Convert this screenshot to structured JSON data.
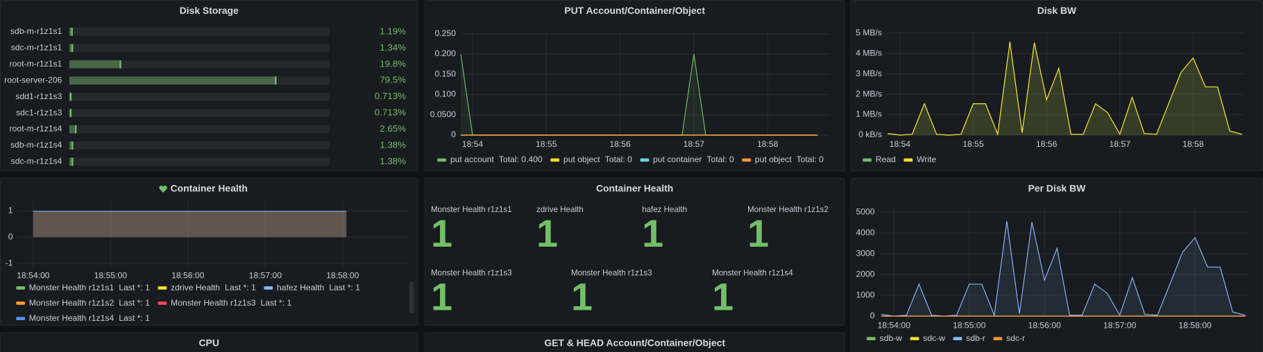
{
  "chart_data": [
    {
      "type": "bargauge",
      "title": "Disk Storage",
      "categories": [
        "sdb-m-r1z1s1",
        "sdc-m-r1z1s1",
        "root-m-r1z1s1",
        "root-server-206",
        "sdd1-r1z1s3",
        "sdc1-r1z1s3",
        "root-m-r1z1s4",
        "sdb-m-r1z1s4",
        "sdc-m-r1z1s4"
      ],
      "values": [
        1.19,
        1.34,
        19.8,
        79.5,
        0.713,
        0.713,
        2.65,
        1.38,
        1.38
      ],
      "value_labels": [
        "1.19%",
        "1.34%",
        "19.8%",
        "79.5%",
        "0.713%",
        "0.713%",
        "2.65%",
        "1.38%",
        "1.38%"
      ],
      "xlim": [
        0,
        100
      ],
      "color": "#73bf69"
    },
    {
      "type": "line",
      "title": "PUT Account/Container/Object",
      "x": [
        53.84,
        54,
        56.84,
        57,
        57.16,
        58.68
      ],
      "series": [
        {
          "name": "put account",
          "color": "#73bf69",
          "values": [
            0.2,
            0,
            0,
            0.2,
            0,
            0
          ],
          "legend_value": {
            "value": 0.4,
            "label": "Total: 0.400"
          }
        },
        {
          "name": "put object",
          "color": "#fade2a",
          "values": [
            0,
            0,
            0,
            0,
            0,
            0
          ],
          "legend_value": {
            "value": 0,
            "label": "Total: 0"
          }
        },
        {
          "name": "put container",
          "color": "#6ed0e0",
          "values": [
            0,
            0,
            0,
            0,
            0,
            0
          ],
          "legend_value": {
            "value": 0,
            "label": "Total: 0"
          }
        },
        {
          "name": "put object",
          "color": "#ff9830",
          "values": [
            0,
            0,
            0,
            0,
            0,
            0
          ],
          "legend_value": {
            "value": 0,
            "label": "Total: 0"
          }
        }
      ],
      "xlim": [
        53.84,
        58.84
      ],
      "ylim": [
        0,
        0.25
      ],
      "xticks": [
        {
          "value": 54,
          "label": "18:54"
        },
        {
          "value": 55,
          "label": "18:55"
        },
        {
          "value": 56,
          "label": "18:56"
        },
        {
          "value": 57,
          "label": "18:57"
        },
        {
          "value": 58,
          "label": "18:58"
        }
      ],
      "yticks": [
        0,
        {
          "value": 0.05,
          "label": "0.0500"
        },
        {
          "value": 0.1,
          "label": "0.100"
        },
        {
          "value": 0.15,
          "label": "0.150"
        },
        {
          "value": 0.2,
          "label": "0.200"
        },
        {
          "value": 0.25,
          "label": "0.250"
        }
      ],
      "grid": true
    },
    {
      "type": "line",
      "title": "Disk BW",
      "x": [
        53.833,
        54,
        54.167,
        54.333,
        54.5,
        54.667,
        54.833,
        55,
        55.167,
        55.333,
        55.5,
        55.667,
        55.833,
        56,
        56.167,
        56.333,
        56.5,
        56.667,
        56.833,
        57,
        57.167,
        57.333,
        57.5,
        57.667,
        57.833,
        58,
        58.167,
        58.333,
        58.5,
        58.667
      ],
      "series": [
        {
          "name": "Read",
          "color": "#73bf69",
          "values": [
            0.08,
            0,
            0.04,
            1.54,
            0.04,
            0,
            0.04,
            1.54,
            1.54,
            0.04,
            4.57,
            0.12,
            4.53,
            1.73,
            3.27,
            0.04,
            0.04,
            1.54,
            1.1,
            0.04,
            1.85,
            0.08,
            0.04,
            1.55,
            3.07,
            3.78,
            2.36,
            2.36,
            0.2,
            0.04
          ]
        },
        {
          "name": "Write",
          "color": "#fade2a",
          "values": [
            0.08,
            0,
            0.04,
            1.54,
            0.04,
            0,
            0.04,
            1.54,
            1.54,
            0.04,
            4.57,
            0.12,
            4.53,
            1.73,
            3.27,
            0.04,
            0.04,
            1.54,
            1.1,
            0.04,
            1.85,
            0.08,
            0.04,
            1.55,
            3.07,
            3.78,
            2.36,
            2.36,
            0.2,
            0.04
          ]
        }
      ],
      "xlim": [
        53.81,
        58.7
      ],
      "ylim": [
        0,
        5.1
      ],
      "xticks": [
        {
          "value": 54,
          "label": "18:54"
        },
        {
          "value": 55,
          "label": "18:55"
        },
        {
          "value": 56,
          "label": "18:56"
        },
        {
          "value": 57,
          "label": "18:57"
        },
        {
          "value": 58,
          "label": "18:58"
        }
      ],
      "yticks": [
        {
          "value": 0,
          "label": "0 kB/s"
        },
        {
          "value": 1,
          "label": "1 MB/s"
        },
        {
          "value": 2,
          "label": "2 MB/s"
        },
        {
          "value": 3,
          "label": "3 MB/s"
        },
        {
          "value": 4,
          "label": "4 MB/s"
        },
        {
          "value": 5,
          "label": "5 MB/s"
        }
      ],
      "grid": true
    },
    {
      "type": "line",
      "title": "Container Health",
      "x": [
        54,
        58.05
      ],
      "series": [
        {
          "name": "Monster Health r1z1s1",
          "color": "#73bf69",
          "values": [
            1,
            1
          ],
          "legend_value": {
            "value": 1,
            "label": "Last *: 1"
          }
        },
        {
          "name": "zdrive Health",
          "color": "#fade2a",
          "values": [
            1,
            1
          ],
          "legend_value": {
            "value": 1,
            "label": "Last *: 1"
          }
        },
        {
          "name": "hafez Health",
          "color": "#8ab8ff",
          "values": [
            1,
            1
          ],
          "legend_value": {
            "value": 1,
            "label": "Last *: 1"
          }
        },
        {
          "name": "Monster Health r1z1s2",
          "color": "#ff9830",
          "values": [
            1,
            1
          ],
          "legend_value": {
            "value": 1,
            "label": "Last *: 1"
          }
        },
        {
          "name": "Monster Health r1z1s3",
          "color": "#f2495c",
          "values": [
            1,
            1
          ],
          "legend_value": {
            "value": 1,
            "label": "Last *: 1"
          }
        },
        {
          "name": "Monster Health r1z1s4",
          "color": "#5794f2",
          "values": [
            1,
            1
          ],
          "legend_value": {
            "value": 1,
            "label": "Last *: 1"
          }
        }
      ],
      "xlim": [
        53.8,
        58.86
      ],
      "ylim": [
        -1.14,
        1.38
      ],
      "xticks": [
        {
          "value": 54,
          "label": "18:54:00"
        },
        {
          "value": 55,
          "label": "18:55:00"
        },
        {
          "value": 56,
          "label": "18:56:00"
        },
        {
          "value": 57,
          "label": "18:57:00"
        },
        {
          "value": 58,
          "label": "18:58:00"
        }
      ],
      "yticks": [
        1,
        0,
        -1
      ],
      "grid": true
    },
    {
      "type": "stat",
      "title": "Container Health",
      "categories": [
        "Monster Health r1z1s1",
        "zdrive Health",
        "hafez Health",
        "Monster Health r1z1s2",
        "Monster Health r1z1s3",
        "Monster Health r1z1s3",
        "Monster Health r1z1s4"
      ],
      "values": [
        1,
        1,
        1,
        1,
        1,
        1,
        1
      ],
      "color": "#73bf69"
    },
    {
      "type": "line",
      "title": "Per Disk BW",
      "x": [
        53.833,
        54,
        54.167,
        54.333,
        54.5,
        54.667,
        54.833,
        55,
        55.167,
        55.333,
        55.5,
        55.667,
        55.833,
        56,
        56.167,
        56.333,
        56.5,
        56.667,
        56.833,
        57,
        57.167,
        57.333,
        57.5,
        57.667,
        57.833,
        58,
        58.167,
        58.333,
        58.5,
        58.667
      ],
      "series": [
        {
          "name": "sdb-w",
          "color": "#73bf69",
          "values": [
            0,
            0,
            0,
            0,
            0,
            0,
            0,
            0,
            0,
            0,
            0,
            0,
            0,
            0,
            0,
            0,
            0,
            0,
            0,
            0,
            0,
            0,
            0,
            0,
            0,
            0,
            0,
            0,
            0,
            0
          ]
        },
        {
          "name": "sdc-w",
          "color": "#fade2a",
          "values": [
            0,
            0,
            0,
            0,
            0,
            0,
            0,
            0,
            0,
            0,
            0,
            0,
            0,
            0,
            0,
            0,
            0,
            0,
            0,
            0,
            0,
            0,
            0,
            0,
            0,
            0,
            0,
            0,
            0,
            0
          ]
        },
        {
          "name": "sdb-r",
          "color": "#8ab8ff",
          "values": [
            80,
            0,
            40,
            1540,
            40,
            0,
            40,
            1540,
            1540,
            40,
            4570,
            120,
            4530,
            1730,
            3270,
            40,
            40,
            1540,
            1100,
            40,
            1850,
            80,
            40,
            1550,
            3070,
            3780,
            2360,
            2360,
            200,
            40
          ]
        },
        {
          "name": "sdc-r",
          "color": "#ff9830",
          "values": [
            0,
            0,
            0,
            0,
            0,
            0,
            0,
            0,
            0,
            0,
            0,
            0,
            0,
            0,
            0,
            0,
            0,
            0,
            0,
            0,
            0,
            0,
            0,
            0,
            0,
            0,
            0,
            0,
            0,
            0
          ]
        }
      ],
      "xlim": [
        53.82,
        58.71
      ],
      "ylim": [
        0,
        5200
      ],
      "xticks": [
        {
          "value": 54,
          "label": "18:54:00"
        },
        {
          "value": 55,
          "label": "18:55:00"
        },
        {
          "value": 56,
          "label": "18:56:00"
        },
        {
          "value": 57,
          "label": "18:57:00"
        },
        {
          "value": 58,
          "label": "18:58:00"
        }
      ],
      "yticks": [
        0,
        1000,
        2000,
        3000,
        4000,
        5000
      ],
      "grid": true
    },
    {
      "type": "panel",
      "title": "CPU"
    },
    {
      "type": "panel",
      "title": "GET & HEAD Account/Container/Object"
    }
  ]
}
